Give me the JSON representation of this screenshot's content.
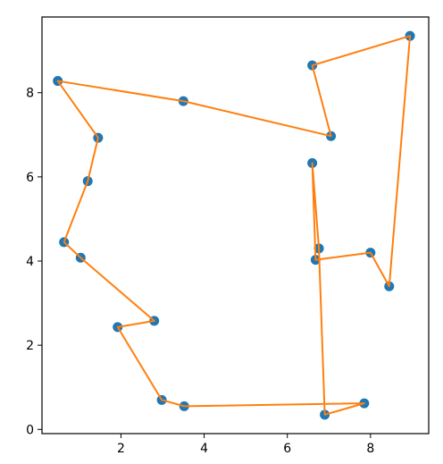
{
  "chart_data": {
    "type": "scatter",
    "title": "",
    "xlabel": "",
    "ylabel": "",
    "xlim": [
      0.1,
      9.4
    ],
    "ylim": [
      -0.1,
      9.8
    ],
    "xticks": [
      2,
      4,
      6,
      8
    ],
    "yticks": [
      0,
      2,
      4,
      6,
      8
    ],
    "xtick_labels": [
      "2",
      "4",
      "6",
      "8"
    ],
    "ytick_labels": [
      "0",
      "2",
      "4",
      "6",
      "8"
    ],
    "grid": false,
    "legend": "none",
    "point_color": "#1f77b4",
    "line_color": "#ff7f0e",
    "points": [
      {
        "x": 0.48,
        "y": 8.28
      },
      {
        "x": 3.5,
        "y": 7.8
      },
      {
        "x": 7.05,
        "y": 6.97
      },
      {
        "x": 6.6,
        "y": 8.65
      },
      {
        "x": 8.95,
        "y": 9.35
      },
      {
        "x": 8.45,
        "y": 3.4
      },
      {
        "x": 8.0,
        "y": 4.2
      },
      {
        "x": 6.68,
        "y": 4.03
      },
      {
        "x": 6.6,
        "y": 6.33
      },
      {
        "x": 6.76,
        "y": 4.3
      },
      {
        "x": 6.9,
        "y": 0.35
      },
      {
        "x": 7.85,
        "y": 0.62
      },
      {
        "x": 3.52,
        "y": 0.55
      },
      {
        "x": 2.98,
        "y": 0.7
      },
      {
        "x": 1.92,
        "y": 2.43
      },
      {
        "x": 2.8,
        "y": 2.58
      },
      {
        "x": 1.03,
        "y": 4.08
      },
      {
        "x": 0.63,
        "y": 4.45
      },
      {
        "x": 1.2,
        "y": 5.9
      },
      {
        "x": 1.45,
        "y": 6.93
      }
    ],
    "path_closed": true
  }
}
